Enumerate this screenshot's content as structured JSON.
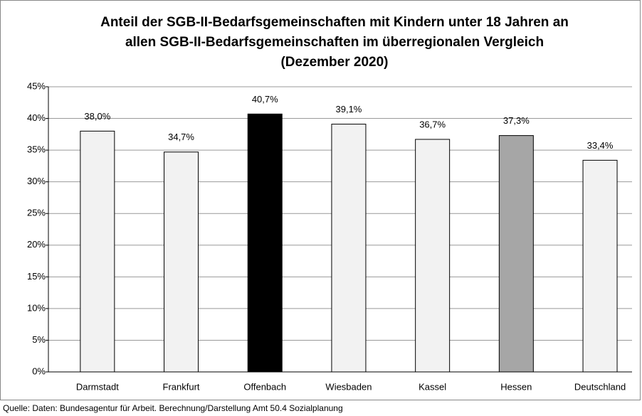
{
  "chart_data": {
    "type": "bar",
    "title": [
      "Anteil der SGB-II-Bedarfsgemeinschaften mit Kindern unter 18 Jahren an",
      "allen SGB-II-Bedarfsgemeinschaften im überregionalen Vergleich",
      "(Dezember 2020)"
    ],
    "categories": [
      "Darmstadt",
      "Frankfurt",
      "Offenbach",
      "Wiesbaden",
      "Kassel",
      "Hessen",
      "Deutschland"
    ],
    "values": [
      38.0,
      34.7,
      40.7,
      39.1,
      36.7,
      37.3,
      33.4
    ],
    "value_labels": [
      "38,0%",
      "34,7%",
      "40,7%",
      "39,1%",
      "36,7%",
      "37,3%",
      "33,4%"
    ],
    "colors": [
      "#f2f2f2",
      "#f2f2f2",
      "#000000",
      "#f2f2f2",
      "#f2f2f2",
      "#a6a6a6",
      "#f2f2f2"
    ],
    "ylim": [
      0,
      45
    ],
    "yticks": [
      {
        "value": 0,
        "label": "0%"
      },
      {
        "value": 5,
        "label": "5%"
      },
      {
        "value": 10,
        "label": "10%"
      },
      {
        "value": 15,
        "label": "15%"
      },
      {
        "value": 20,
        "label": "20%"
      },
      {
        "value": 25,
        "label": "25%"
      },
      {
        "value": 30,
        "label": "30%"
      },
      {
        "value": 35,
        "label": "35%"
      },
      {
        "value": 40,
        "label": "40%"
      },
      {
        "value": 45,
        "label": "45%"
      }
    ],
    "grid": true,
    "source": "Quelle: Daten: Bundesagentur für Arbeit. Berechnung/Darstellung  Amt 50.4 Sozialplanung"
  }
}
